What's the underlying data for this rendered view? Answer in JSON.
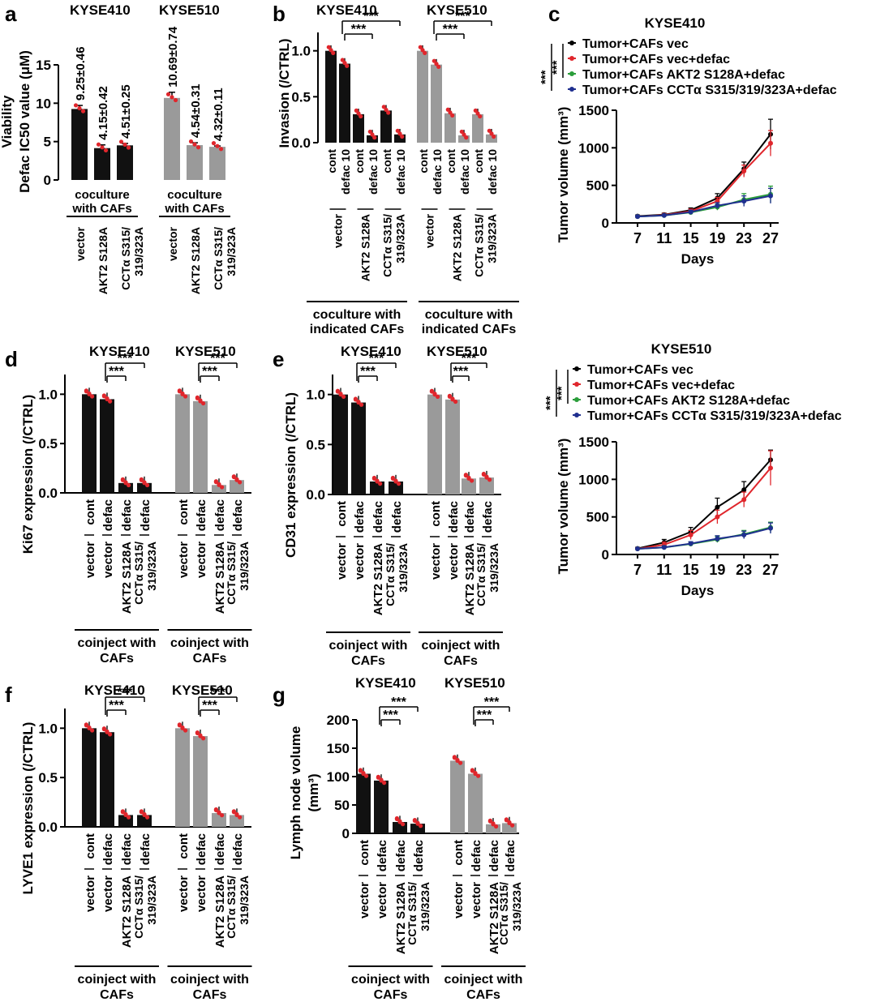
{
  "colors": {
    "black_bar": "#111111",
    "gray_bar": "#9a9a9a",
    "dot": "#e0262c",
    "line_vec": "#000000",
    "line_defac": "#e0262c",
    "line_akt": "#2a9d3a",
    "line_cct": "#1f2f8f"
  },
  "sig_label": "***",
  "panel_a": {
    "letter": "a",
    "chart_data": {
      "type": "bar",
      "ylabel_line1": "Viability",
      "ylabel_line2": "Defac IC50 value (μM)",
      "ylim": [
        0,
        15
      ],
      "yticks": [
        "0",
        "5",
        "10",
        "15"
      ],
      "groups": [
        {
          "name": "KYSE410",
          "categories": [
            "vector",
            "AKT2 S128A",
            "CCTα S315/ 319/323A"
          ],
          "values": [
            9.25,
            4.15,
            4.51
          ],
          "sd": [
            0.46,
            0.42,
            0.25
          ],
          "labels": [
            "9.25±0.46",
            "4.15±0.42",
            "4.51±0.25"
          ],
          "color": "black"
        },
        {
          "name": "KYSE510",
          "categories": [
            "vector",
            "AKT2 S128A",
            "CCTα S315/ 319/323A"
          ],
          "values": [
            10.69,
            4.54,
            4.32
          ],
          "sd": [
            0.74,
            0.31,
            0.11
          ],
          "labels": [
            "10.69±0.74",
            "4.54±0.31",
            "4.32±0.11"
          ],
          "color": "gray"
        }
      ],
      "group_footer": [
        "coculture",
        "with CAFs"
      ]
    }
  },
  "panel_b": {
    "letter": "b",
    "chart_data": {
      "type": "bar",
      "ylabel": "Invasion (/CTRL)",
      "ylim": [
        0,
        1.2
      ],
      "yticks": [
        "0.0",
        "0.5",
        "1.0"
      ],
      "groups": [
        {
          "name": "KYSE410",
          "labels": [
            "cont",
            "defac 10",
            "cont",
            "defac 10",
            "cont",
            "defac 10"
          ],
          "values": [
            1.0,
            0.86,
            0.31,
            0.08,
            0.35,
            0.09
          ],
          "color": "black"
        },
        {
          "name": "KYSE510",
          "labels": [
            "cont",
            "defac 10",
            "cont",
            "defac 10",
            "cont",
            "defac 10"
          ],
          "values": [
            1.0,
            0.85,
            0.32,
            0.08,
            0.31,
            0.09
          ],
          "color": "gray"
        }
      ],
      "pair_labels": [
        "vector",
        "AKT2 S128A",
        "CCTα S315/ 319/323A"
      ],
      "group_footer": [
        "coculture with",
        "indicated CAFs"
      ]
    }
  },
  "panel_c": {
    "letter": "c",
    "charts": [
      {
        "type": "line",
        "title": "KYSE410",
        "xlabel": "Days",
        "ylabel": "Tumor volume (mm³)",
        "x": [
          7,
          11,
          15,
          19,
          23,
          27
        ],
        "ylim": [
          0,
          1500
        ],
        "yticks": [
          "0",
          "500",
          "1000",
          "1500"
        ],
        "series": [
          {
            "name": "Tumor+CAFs vec",
            "values": [
              90,
              110,
              170,
              330,
              720,
              1180
            ],
            "err": [
              15,
              20,
              30,
              60,
              90,
              200
            ],
            "color": "vec"
          },
          {
            "name": "Tumor+CAFs vec+defac",
            "values": [
              85,
              105,
              155,
              290,
              690,
              1060
            ],
            "err": [
              15,
              20,
              30,
              50,
              80,
              170
            ],
            "color": "defac"
          },
          {
            "name": "Tumor+CAFs AKT2 S128A+defac",
            "values": [
              85,
              100,
              140,
              210,
              310,
              380
            ],
            "err": [
              12,
              15,
              25,
              40,
              80,
              110
            ],
            "color": "akt"
          },
          {
            "name": "Tumor+CAFs CCTα S315/319/323A+defac",
            "values": [
              85,
              100,
              145,
              230,
              290,
              360
            ],
            "err": [
              12,
              15,
              25,
              40,
              70,
              100
            ],
            "color": "cct"
          }
        ]
      },
      {
        "type": "line",
        "title": "KYSE510",
        "xlabel": "Days",
        "ylabel": "Tumor volume (mm³)",
        "x": [
          7,
          11,
          15,
          19,
          23,
          27
        ],
        "ylim": [
          0,
          1500
        ],
        "yticks": [
          "0",
          "500",
          "1000",
          "1500"
        ],
        "series": [
          {
            "name": "Tumor+CAFs vec",
            "values": [
              80,
              160,
              300,
              630,
              860,
              1260
            ],
            "err": [
              15,
              40,
              60,
              120,
              110,
              130
            ],
            "color": "vec"
          },
          {
            "name": "Tumor+CAFs vec+defac",
            "values": [
              75,
              130,
              260,
              500,
              730,
              1150
            ],
            "err": [
              15,
              35,
              60,
              90,
              100,
              230
            ],
            "color": "defac"
          },
          {
            "name": "Tumor+CAFs AKT2 S128A+defac",
            "values": [
              75,
              95,
              140,
              200,
              270,
              360
            ],
            "err": [
              10,
              20,
              25,
              40,
              50,
              70
            ],
            "color": "akt"
          },
          {
            "name": "Tumor+CAFs CCTα S315/319/323A+defac",
            "values": [
              75,
              95,
              145,
              210,
              260,
              350
            ],
            "err": [
              10,
              20,
              25,
              40,
              50,
              70
            ],
            "color": "cct"
          }
        ]
      }
    ]
  },
  "panel_d": {
    "letter": "d",
    "chart_data": {
      "type": "bar",
      "ylabel": "Ki67 expression (/CTRL)",
      "ylim": [
        0,
        1.2
      ],
      "yticks": [
        "0.0",
        "0.5",
        "1.0"
      ],
      "groups": [
        {
          "name": "KYSE410",
          "values": [
            1.0,
            0.95,
            0.1,
            0.1
          ],
          "color": "black"
        },
        {
          "name": "KYSE510",
          "values": [
            1.0,
            0.93,
            0.08,
            0.13
          ],
          "color": "gray"
        }
      ]
    }
  },
  "panel_e": {
    "letter": "e",
    "chart_data": {
      "type": "bar",
      "ylabel": "CD31 expression (/CTRL)",
      "ylim": [
        0,
        1.2
      ],
      "yticks": [
        "0.0",
        "0.5",
        "1.0"
      ],
      "groups": [
        {
          "name": "KYSE410",
          "values": [
            1.0,
            0.92,
            0.13,
            0.13
          ],
          "color": "black"
        },
        {
          "name": "KYSE510",
          "values": [
            1.0,
            0.95,
            0.16,
            0.17
          ],
          "color": "gray"
        }
      ]
    }
  },
  "panel_f": {
    "letter": "f",
    "chart_data": {
      "type": "bar",
      "ylabel": "LYVE1 expression (/CTRL)",
      "ylim": [
        0,
        1.2
      ],
      "yticks": [
        "0.0",
        "0.5",
        "1.0"
      ],
      "groups": [
        {
          "name": "KYSE410",
          "values": [
            1.0,
            0.96,
            0.12,
            0.12
          ],
          "color": "black"
        },
        {
          "name": "KYSE510",
          "values": [
            1.0,
            0.92,
            0.14,
            0.12
          ],
          "color": "gray"
        }
      ]
    }
  },
  "panel_g": {
    "letter": "g",
    "chart_data": {
      "type": "bar",
      "ylabel_line1": "Lymph node volume",
      "ylabel_line2": "(mm³)",
      "ylim": [
        0,
        200
      ],
      "yticks": [
        "0",
        "50",
        "100",
        "150",
        "200"
      ],
      "groups": [
        {
          "name": "KYSE410",
          "values": [
            105,
            93,
            20,
            17
          ],
          "color": "black"
        },
        {
          "name": "KYSE510",
          "values": [
            128,
            105,
            16,
            18
          ],
          "color": "gray"
        }
      ]
    }
  },
  "dg_categories": {
    "top": [
      "cont",
      "defac",
      "defac",
      "defac"
    ],
    "bottom": [
      "vector",
      "vector",
      "AKT2 S128A",
      "CCTα S315/ 319/323A"
    ]
  },
  "coinject_footer": [
    "coinject with",
    "CAFs"
  ]
}
